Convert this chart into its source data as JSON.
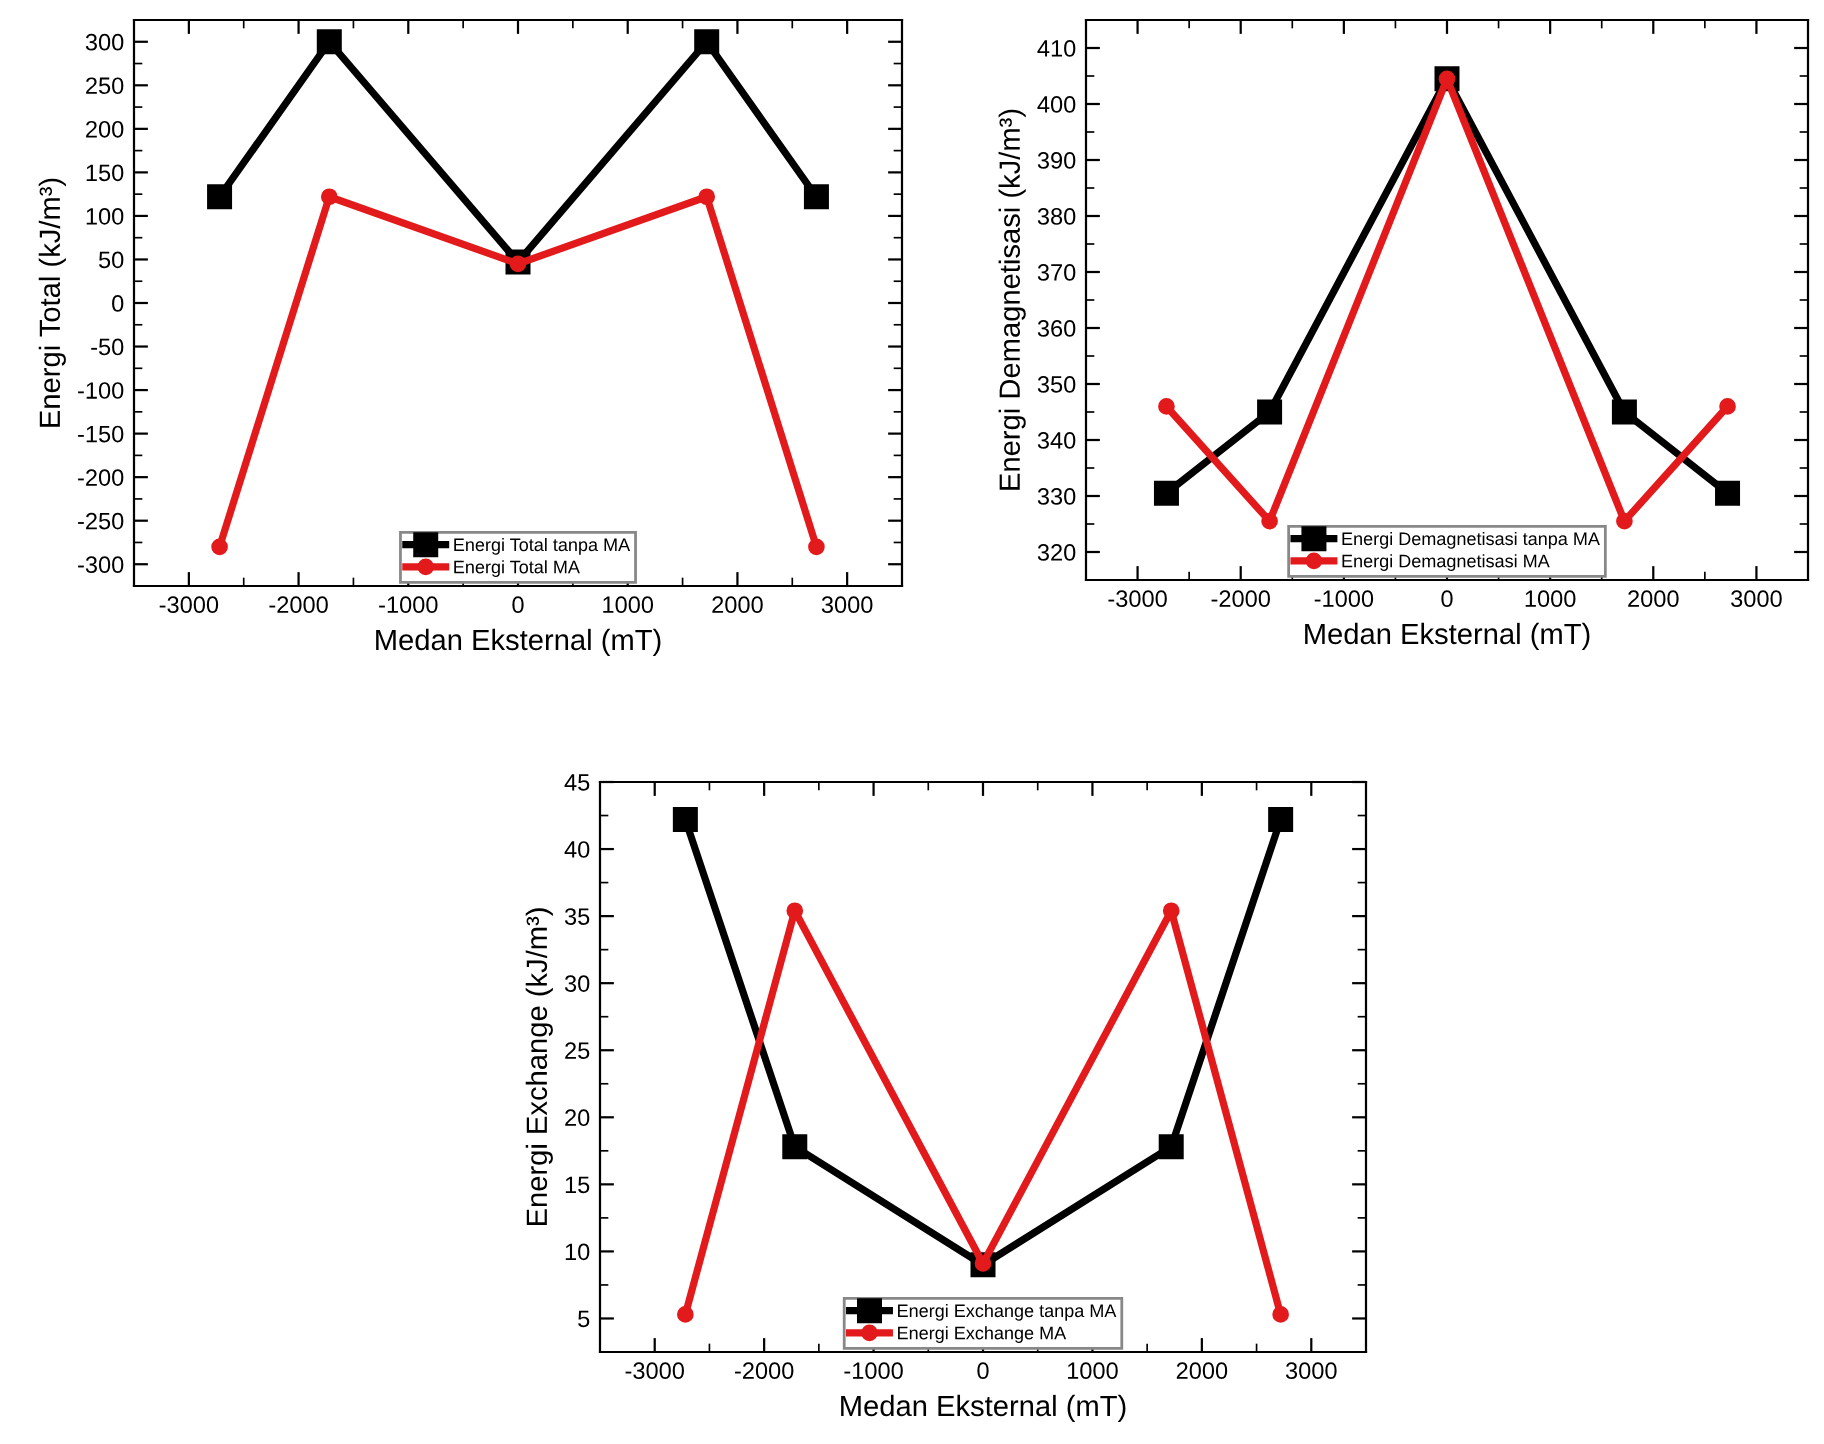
{
  "chart_data": [
    {
      "type": "line",
      "xlabel": "Medan Eksternal (mT)",
      "ylabel": "Energi Total (kJ/m³)",
      "x": [
        -2720,
        -1720,
        0,
        1720,
        2720
      ],
      "xlim": [
        -3500,
        3500
      ],
      "xticks": [
        -3000,
        -2000,
        -1000,
        0,
        1000,
        2000,
        3000
      ],
      "ylim": [
        -325,
        325
      ],
      "yticks": [
        -300,
        -250,
        -200,
        -150,
        -100,
        -50,
        0,
        50,
        100,
        150,
        200,
        250,
        300
      ],
      "grid": false,
      "legend": "bottom",
      "series": [
        {
          "name": "Energi Total tanpa MA",
          "color": "#000000",
          "marker": "square",
          "values": [
            122,
            300,
            47,
            300,
            122
          ]
        },
        {
          "name": "Energi Total MA",
          "color": "#e31a1c",
          "marker": "circle",
          "values": [
            -280,
            122,
            45,
            122,
            -280
          ]
        }
      ]
    },
    {
      "type": "line",
      "xlabel": "Medan Eksternal (mT)",
      "ylabel": "Energi Demagnetisasi (kJ/m³)",
      "x": [
        -2720,
        -1720,
        0,
        1720,
        2720
      ],
      "xlim": [
        -3500,
        3500
      ],
      "xticks": [
        -3000,
        -2000,
        -1000,
        0,
        1000,
        2000,
        3000
      ],
      "ylim": [
        315,
        415
      ],
      "yticks": [
        320,
        330,
        340,
        350,
        360,
        370,
        380,
        390,
        400,
        410
      ],
      "grid": false,
      "legend": "bottom",
      "series": [
        {
          "name": "Energi Demagnetisasi tanpa MA",
          "color": "#000000",
          "marker": "square",
          "values": [
            330.5,
            345,
            404.5,
            345,
            330.5
          ]
        },
        {
          "name": "Energi Demagnetisasi MA",
          "color": "#e31a1c",
          "marker": "circle",
          "values": [
            346,
            325.5,
            404.5,
            325.5,
            346
          ]
        }
      ]
    },
    {
      "type": "line",
      "xlabel": "Medan Eksternal (mT)",
      "ylabel": "Energi Exchange (kJ/m³)",
      "x": [
        -2720,
        -1720,
        0,
        1720,
        2720
      ],
      "xlim": [
        -3500,
        3500
      ],
      "xticks": [
        -3000,
        -2000,
        -1000,
        0,
        1000,
        2000,
        3000
      ],
      "ylim": [
        2.5,
        45
      ],
      "yticks": [
        5,
        10,
        15,
        20,
        25,
        30,
        35,
        40,
        45
      ],
      "grid": false,
      "legend": "bottom",
      "series": [
        {
          "name": "Energi Exchange tanpa MA",
          "color": "#000000",
          "marker": "square",
          "values": [
            42.2,
            17.8,
            9.0,
            17.8,
            42.2
          ]
        },
        {
          "name": "Energi Exchange MA",
          "color": "#e31a1c",
          "marker": "circle",
          "values": [
            5.3,
            35.4,
            9.1,
            35.4,
            5.3
          ]
        }
      ]
    }
  ]
}
